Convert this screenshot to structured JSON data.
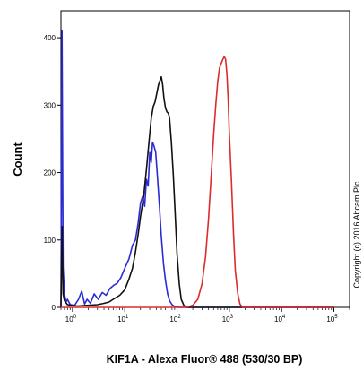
{
  "chart_data": {
    "type": "line",
    "xlabel": "KIF1A - Alexa Fluor® 488 (530/30 BP)",
    "ylabel": "Count",
    "xscale": "log",
    "xlim": [
      0.6,
      200000
    ],
    "ylim": [
      0,
      440
    ],
    "xticks": [
      {
        "base": "10",
        "exp": "0",
        "value": 1
      },
      {
        "base": "10",
        "exp": "1",
        "value": 10
      },
      {
        "base": "10",
        "exp": "2",
        "value": 100
      },
      {
        "base": "10",
        "exp": "3",
        "value": 1000
      },
      {
        "base": "10",
        "exp": "4",
        "value": 10000
      },
      {
        "base": "10",
        "exp": "5",
        "value": 100000
      }
    ],
    "yticks": [
      {
        "label": "0",
        "value": 0
      },
      {
        "label": "100",
        "value": 100
      },
      {
        "label": "200",
        "value": 200
      },
      {
        "label": "300",
        "value": 300
      },
      {
        "label": "400",
        "value": 400
      }
    ],
    "annotation": "Copyright (c) 2016 Abcam Plc",
    "series": [
      {
        "color": "#2b2bd6",
        "points": [
          [
            0.6,
            0
          ],
          [
            0.63,
            410
          ],
          [
            0.66,
            60
          ],
          [
            0.7,
            20
          ],
          [
            0.75,
            8
          ],
          [
            0.8,
            12
          ],
          [
            0.9,
            4
          ],
          [
            1.1,
            3
          ],
          [
            1.3,
            12
          ],
          [
            1.5,
            24
          ],
          [
            1.7,
            5
          ],
          [
            1.9,
            12
          ],
          [
            2.2,
            6
          ],
          [
            2.6,
            20
          ],
          [
            3.1,
            12
          ],
          [
            3.7,
            22
          ],
          [
            4.4,
            18
          ],
          [
            5.2,
            28
          ],
          [
            6.2,
            33
          ],
          [
            7.2,
            36
          ],
          [
            8.4,
            44
          ],
          [
            10,
            58
          ],
          [
            12,
            72
          ],
          [
            14,
            92
          ],
          [
            16,
            100
          ],
          [
            18,
            125
          ],
          [
            20,
            155
          ],
          [
            22,
            165
          ],
          [
            24,
            150
          ],
          [
            26,
            190
          ],
          [
            28,
            180
          ],
          [
            30,
            230
          ],
          [
            32,
            215
          ],
          [
            34,
            245
          ],
          [
            36,
            240
          ],
          [
            39,
            230
          ],
          [
            42,
            195
          ],
          [
            46,
            150
          ],
          [
            50,
            105
          ],
          [
            55,
            65
          ],
          [
            60,
            40
          ],
          [
            66,
            20
          ],
          [
            72,
            10
          ],
          [
            80,
            4
          ],
          [
            90,
            1
          ],
          [
            110,
            0
          ],
          [
            100000,
            0
          ]
        ]
      },
      {
        "color": "#111111",
        "points": [
          [
            0.6,
            0
          ],
          [
            0.63,
            120
          ],
          [
            0.66,
            20
          ],
          [
            0.7,
            10
          ],
          [
            0.8,
            4
          ],
          [
            1.2,
            2
          ],
          [
            2,
            3
          ],
          [
            3,
            4
          ],
          [
            4,
            6
          ],
          [
            5,
            8
          ],
          [
            6,
            12
          ],
          [
            8,
            18
          ],
          [
            10,
            26
          ],
          [
            12,
            42
          ],
          [
            14,
            58
          ],
          [
            16,
            82
          ],
          [
            18,
            108
          ],
          [
            20,
            135
          ],
          [
            23,
            165
          ],
          [
            26,
            205
          ],
          [
            29,
            245
          ],
          [
            32,
            280
          ],
          [
            35,
            298
          ],
          [
            38,
            305
          ],
          [
            41,
            318
          ],
          [
            44,
            330
          ],
          [
            47,
            336
          ],
          [
            50,
            342
          ],
          [
            53,
            330
          ],
          [
            56,
            310
          ],
          [
            60,
            296
          ],
          [
            64,
            290
          ],
          [
            68,
            288
          ],
          [
            72,
            280
          ],
          [
            78,
            245
          ],
          [
            85,
            195
          ],
          [
            92,
            140
          ],
          [
            100,
            80
          ],
          [
            110,
            35
          ],
          [
            120,
            12
          ],
          [
            135,
            3
          ],
          [
            150,
            0
          ],
          [
            100000,
            0
          ]
        ]
      },
      {
        "color": "#dd2b2b",
        "points": [
          [
            0.6,
            0
          ],
          [
            150,
            0
          ],
          [
            200,
            3
          ],
          [
            250,
            12
          ],
          [
            300,
            35
          ],
          [
            350,
            75
          ],
          [
            400,
            130
          ],
          [
            450,
            195
          ],
          [
            500,
            255
          ],
          [
            550,
            300
          ],
          [
            600,
            335
          ],
          [
            650,
            355
          ],
          [
            700,
            362
          ],
          [
            750,
            368
          ],
          [
            800,
            372
          ],
          [
            850,
            368
          ],
          [
            900,
            345
          ],
          [
            950,
            310
          ],
          [
            1000,
            260
          ],
          [
            1100,
            185
          ],
          [
            1200,
            110
          ],
          [
            1300,
            55
          ],
          [
            1450,
            20
          ],
          [
            1600,
            5
          ],
          [
            1800,
            0
          ],
          [
            100000,
            0
          ]
        ]
      }
    ]
  }
}
